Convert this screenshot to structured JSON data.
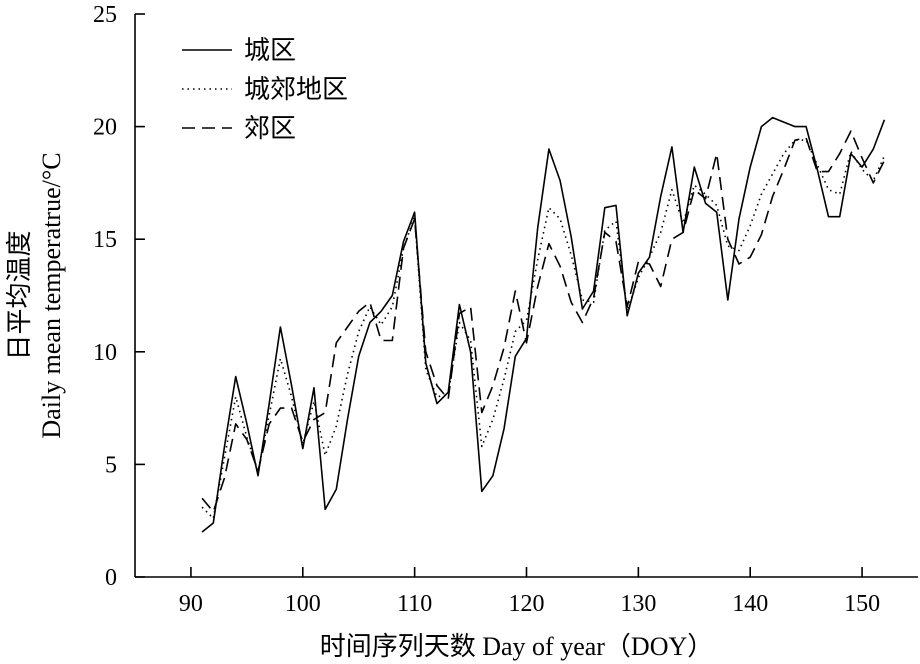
{
  "chart_data": {
    "type": "line",
    "title": "",
    "xlabel": "时间序列天数 Day of year（DOY）",
    "ylabel_cn": "日平均温度",
    "ylabel_en": "Daily mean temperatrue/°C",
    "xlim": [
      85,
      155
    ],
    "ylim": [
      0,
      25
    ],
    "xticks": [
      90,
      100,
      110,
      120,
      130,
      140,
      150
    ],
    "yticks": [
      0,
      5,
      10,
      15,
      20,
      25
    ],
    "legend_position": "top-left",
    "grid": false,
    "x": [
      91,
      92,
      93,
      94,
      95,
      96,
      97,
      98,
      99,
      100,
      101,
      102,
      103,
      104,
      105,
      106,
      107,
      108,
      109,
      110,
      111,
      112,
      113,
      114,
      115,
      116,
      117,
      118,
      119,
      120,
      121,
      122,
      123,
      124,
      125,
      126,
      127,
      128,
      129,
      130,
      131,
      132,
      133,
      134,
      135,
      136,
      137,
      138,
      139,
      140,
      141,
      142,
      143,
      144,
      145,
      146,
      147,
      148,
      149,
      150,
      151,
      152
    ],
    "series": [
      {
        "name": "城区",
        "style": "solid",
        "values": [
          2.0,
          2.4,
          5.8,
          8.9,
          6.8,
          4.5,
          7.7,
          11.1,
          8.5,
          5.7,
          8.4,
          3.0,
          3.9,
          7.0,
          9.8,
          11.3,
          11.8,
          12.5,
          14.9,
          16.2,
          9.5,
          7.7,
          8.2,
          12.1,
          10.0,
          3.8,
          4.5,
          6.6,
          9.8,
          10.6,
          15.5,
          19.0,
          17.6,
          15.1,
          11.9,
          12.7,
          16.4,
          16.5,
          11.6,
          13.5,
          14.2,
          16.9,
          19.1,
          15.3,
          18.2,
          16.6,
          16.2,
          12.3,
          15.9,
          18.2,
          20.0,
          20.4,
          20.2,
          20.0,
          20.0,
          18.1,
          16.0,
          16.0,
          18.8,
          18.2,
          19.0,
          20.3
        ]
      },
      {
        "name": "城郊地区",
        "style": "dotted",
        "values": [
          3.1,
          2.6,
          5.3,
          8.0,
          6.2,
          4.7,
          7.2,
          9.7,
          8.0,
          5.9,
          7.8,
          5.4,
          6.7,
          9.0,
          10.9,
          12.0,
          11.2,
          12.0,
          14.6,
          16.0,
          9.2,
          8.0,
          8.1,
          11.3,
          10.5,
          5.8,
          7.0,
          8.8,
          10.9,
          11.4,
          14.1,
          16.4,
          15.9,
          14.3,
          12.3,
          12.2,
          15.4,
          15.8,
          11.8,
          13.3,
          14.2,
          15.3,
          17.2,
          15.7,
          17.4,
          17.0,
          16.5,
          14.7,
          14.5,
          15.6,
          17.0,
          17.9,
          18.8,
          19.4,
          19.4,
          18.3,
          17.2,
          17.0,
          18.9,
          18.1,
          17.6,
          18.7
        ]
      },
      {
        "name": "郊区",
        "style": "dashed",
        "values": [
          3.5,
          2.9,
          4.4,
          6.8,
          6.1,
          4.7,
          6.8,
          7.5,
          7.5,
          6.0,
          7.0,
          7.3,
          10.4,
          11.1,
          11.8,
          12.2,
          10.5,
          10.5,
          14.6,
          15.9,
          10.0,
          8.5,
          7.9,
          11.7,
          12.0,
          7.3,
          8.5,
          10.2,
          12.7,
          10.4,
          12.9,
          14.8,
          13.8,
          12.2,
          11.3,
          12.4,
          15.3,
          14.9,
          12.0,
          14.0,
          13.9,
          12.9,
          15.0,
          15.3,
          17.2,
          16.8,
          18.8,
          15.0,
          13.9,
          14.2,
          15.2,
          16.9,
          18.1,
          19.4,
          19.5,
          18.0,
          18.0,
          18.8,
          19.8,
          18.6,
          17.5,
          18.5
        ]
      }
    ]
  }
}
